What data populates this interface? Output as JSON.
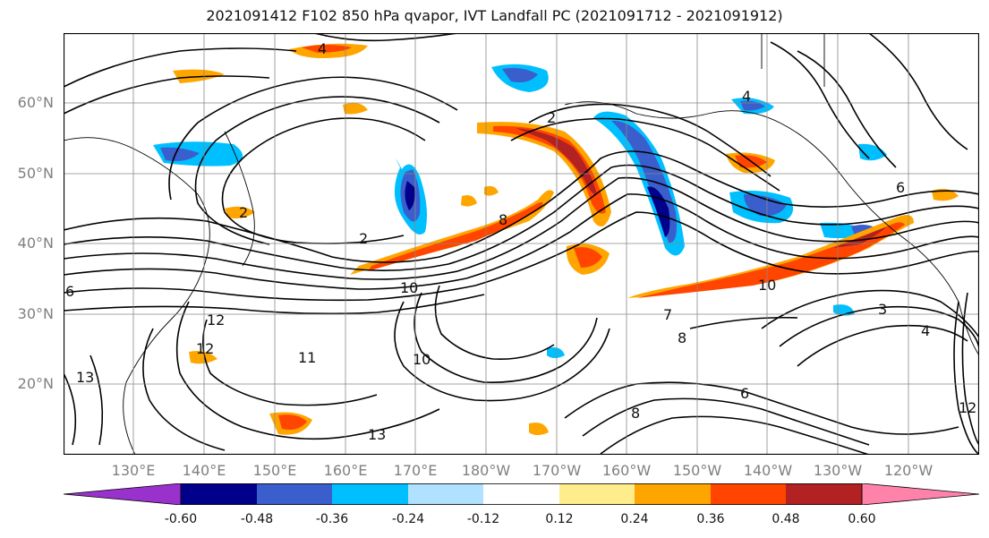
{
  "title": "2021091412 F102 850 hPa qvapor, IVT Landfall PC (2021091712 - 2021091912)",
  "map": {
    "lat_labels": [
      "60°N",
      "50°N",
      "40°N",
      "30°N",
      "20°N"
    ],
    "lon_labels": [
      "130°E",
      "140°E",
      "150°E",
      "160°E",
      "170°E",
      "180°W",
      "170°W",
      "160°W",
      "150°W",
      "140°W",
      "130°W",
      "120°W"
    ],
    "contour_labels": [
      "4",
      "4",
      "2",
      "2",
      "8",
      "8",
      "10",
      "10",
      "10",
      "12",
      "12",
      "11",
      "13",
      "13",
      "7",
      "6",
      "8",
      "3",
      "4",
      "12",
      "6",
      "2",
      "6"
    ]
  },
  "colorbar": {
    "colors": [
      "#9932cc",
      "#00008b",
      "#3a5fcd",
      "#00bfff",
      "#b0e2ff",
      "#ffffff",
      "#ffec8b",
      "#ffa500",
      "#ff4500",
      "#b22222",
      "#ff82ab"
    ],
    "tick_labels": [
      "-0.60",
      "-0.48",
      "-0.36",
      "-0.24",
      "-0.12",
      "0.12",
      "0.24",
      "0.36",
      "0.48",
      "0.60"
    ]
  }
}
